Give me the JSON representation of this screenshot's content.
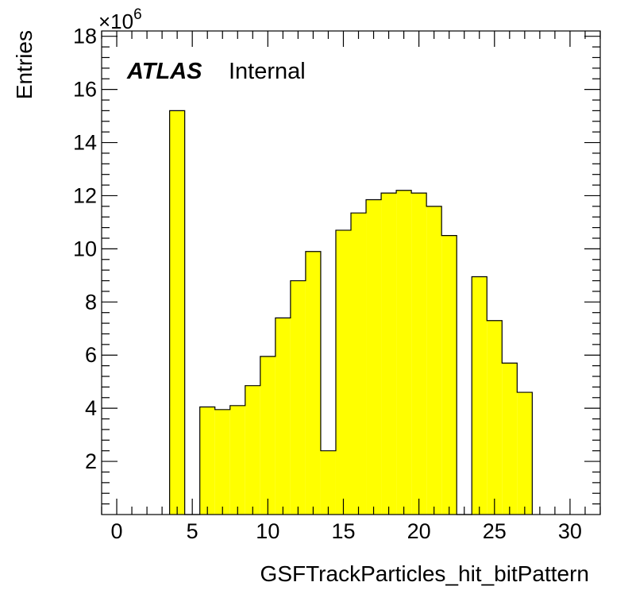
{
  "chart_data": {
    "type": "bar",
    "histogram": true,
    "bin_width": 1,
    "xlabel": "GSFTrackParticles_hit_bitPattern",
    "ylabel": "Entries",
    "y_multiplier_label": "×10",
    "y_multiplier_exponent": "6",
    "xlim": [
      -1,
      32
    ],
    "ylim": [
      0,
      18.2
    ],
    "x_ticks": [
      0,
      5,
      10,
      15,
      20,
      25,
      30
    ],
    "y_ticks": [
      2,
      4,
      6,
      8,
      10,
      12,
      14,
      16,
      18
    ],
    "bins": [
      {
        "x": 4,
        "value": 15.2
      },
      {
        "x": 5,
        "value": 0
      },
      {
        "x": 6,
        "value": 4.05
      },
      {
        "x": 7,
        "value": 3.95
      },
      {
        "x": 8,
        "value": 4.1
      },
      {
        "x": 9,
        "value": 4.85
      },
      {
        "x": 10,
        "value": 5.95
      },
      {
        "x": 11,
        "value": 7.4
      },
      {
        "x": 12,
        "value": 8.8
      },
      {
        "x": 13,
        "value": 9.9
      },
      {
        "x": 14,
        "value": 2.4
      },
      {
        "x": 15,
        "value": 10.7
      },
      {
        "x": 16,
        "value": 11.35
      },
      {
        "x": 17,
        "value": 11.85
      },
      {
        "x": 18,
        "value": 12.1
      },
      {
        "x": 19,
        "value": 12.2
      },
      {
        "x": 20,
        "value": 12.1
      },
      {
        "x": 21,
        "value": 11.6
      },
      {
        "x": 22,
        "value": 10.5
      },
      {
        "x": 23,
        "value": 0
      },
      {
        "x": 24,
        "value": 8.95
      },
      {
        "x": 25,
        "value": 7.3
      },
      {
        "x": 26,
        "value": 5.7
      },
      {
        "x": 27,
        "value": 4.6
      }
    ],
    "fill_color": "#ffff00",
    "line_color": "#000000",
    "grid": false,
    "annotations": {
      "experiment": "ATLAS",
      "status": "Internal"
    }
  }
}
